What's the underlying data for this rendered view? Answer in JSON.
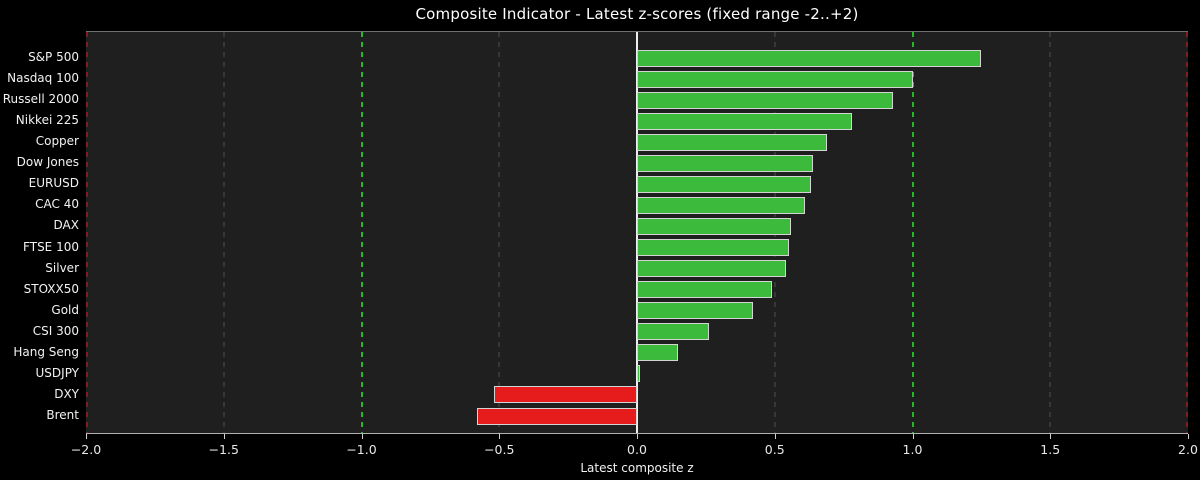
{
  "chart_data": {
    "type": "bar",
    "orientation": "horizontal",
    "title": "Composite Indicator - Latest z-scores (fixed range -2..+2)",
    "xlabel": "Latest composite z",
    "xlim": [
      -2.0,
      2.0
    ],
    "grid": "vertical-dashed",
    "categories": [
      "S&P 500",
      "Nasdaq 100",
      "Russell 2000",
      "Nikkei 225",
      "Copper",
      "Dow Jones",
      "EURUSD",
      "CAC 40",
      "DAX",
      "FTSE 100",
      "Silver",
      "STOXX50",
      "Gold",
      "CSI 300",
      "Hang Seng",
      "USDJPY",
      "DXY",
      "Brent"
    ],
    "values": [
      1.25,
      1.0,
      0.93,
      0.78,
      0.69,
      0.64,
      0.63,
      0.61,
      0.56,
      0.55,
      0.54,
      0.49,
      0.42,
      0.26,
      0.15,
      0.01,
      -0.52,
      -0.58
    ],
    "x_ticks": [
      -2.0,
      -1.5,
      -1.0,
      -0.5,
      0.0,
      0.5,
      1.0,
      1.5,
      2.0
    ],
    "x_tick_labels": [
      "−2.0",
      "−1.5",
      "−1.0",
      "−0.5",
      "0.0",
      "0.5",
      "1.0",
      "1.5",
      "2.0"
    ],
    "gridlines": [
      -1.5,
      -0.5,
      0.5,
      1.5
    ],
    "ref_lines": [
      {
        "x": -2.0,
        "color": "#7e1e1e",
        "style": "dashed"
      },
      {
        "x": -1.0,
        "color": "#25b825",
        "style": "dashed"
      },
      {
        "x": 0.0,
        "color": "#eeeeee",
        "style": "solid"
      },
      {
        "x": 1.0,
        "color": "#25b825",
        "style": "dashed"
      },
      {
        "x": 2.0,
        "color": "#7e1e1e",
        "style": "dashed"
      }
    ],
    "colors": {
      "positive_bar": "#3cba3c",
      "negative_bar": "#e61c1c",
      "bar_edge": "#d4d4d4",
      "grid": "#4f4f4f",
      "plot_background": "#1f1f1f",
      "figure_background": "#000000",
      "text": "#f2f2f2"
    }
  }
}
